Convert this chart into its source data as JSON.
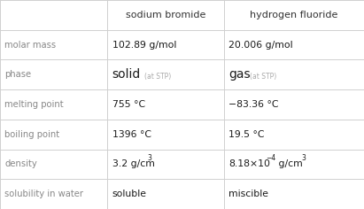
{
  "col_headers": [
    "",
    "sodium bromide",
    "hydrogen fluoride"
  ],
  "rows": [
    {
      "label": "molar mass",
      "val1": "102.89 g/mol",
      "val2": "20.006 g/mol",
      "type": "plain"
    },
    {
      "label": "phase",
      "val1_main": "solid",
      "val1_sub": "(at STP)",
      "val2_main": "gas",
      "val2_sub": "(at STP)",
      "type": "phase"
    },
    {
      "label": "melting point",
      "val1": "755 °C",
      "val2": "−83.36 °C",
      "type": "plain"
    },
    {
      "label": "boiling point",
      "val1": "1396 °C",
      "val2": "19.5 °C",
      "type": "plain"
    },
    {
      "label": "density",
      "type": "density"
    },
    {
      "label": "solubility in water",
      "val1": "soluble",
      "val2": "miscible",
      "type": "plain"
    }
  ],
  "bg_color": "#ffffff",
  "line_color": "#d0d0d0",
  "label_color": "#888888",
  "value_color": "#1a1a1a",
  "header_color": "#333333",
  "figsize": [
    4.11,
    2.36
  ],
  "dpi": 100
}
